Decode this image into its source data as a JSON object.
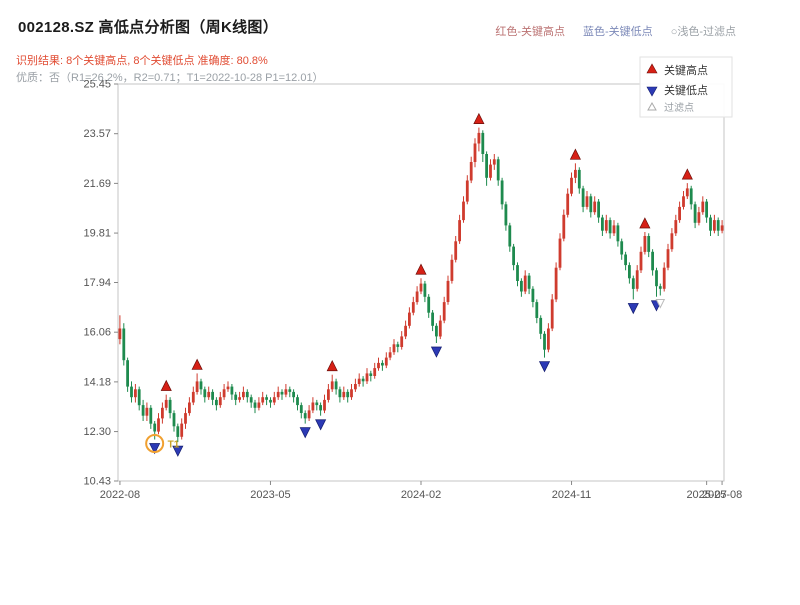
{
  "header": {
    "title": "002128.SZ 高低点分析图（周K线图）",
    "legend_top": [
      {
        "label": "红色-关键高点",
        "color": "#bb7272"
      },
      {
        "label": "蓝色-关键低点",
        "color": "#7c89b8"
      },
      {
        "label": "○浅色-过滤点",
        "color": "#9aa0a6"
      }
    ],
    "result_line": "识别结果: 8个关键高点, 8个关键低点   准确度: 80.8%",
    "quality_line": "优质：否（R1=26.2%，R2=0.71；T1=2022-10-28 P1=12.01）"
  },
  "chart_data": {
    "type": "candlestick",
    "title": "002128.SZ 高低点分析图（周K线图）",
    "period": "weekly",
    "xlabel": "",
    "ylabel": "",
    "ylim": [
      10.43,
      25.45
    ],
    "y_ticks": [
      10.43,
      12.3,
      14.18,
      16.06,
      17.94,
      19.81,
      21.69,
      23.57,
      25.45
    ],
    "x_ticks": [
      {
        "week": 0,
        "label": "2022-08"
      },
      {
        "week": 39,
        "label": "2023-05"
      },
      {
        "week": 78,
        "label": "2024-02"
      },
      {
        "week": 117,
        "label": "2024-11"
      },
      {
        "week": 152,
        "label": "2025-07"
      },
      {
        "week": 156,
        "label": "2025-08"
      }
    ],
    "legend_box": [
      {
        "marker": "key-high",
        "label": "关键高点"
      },
      {
        "marker": "key-low",
        "label": "关键低点"
      },
      {
        "marker": "filtered",
        "label": "过滤点"
      }
    ],
    "colors": {
      "up": "#cf3b2e",
      "down": "#1e8a4e",
      "key_high": "#d62016",
      "key_low": "#2c3ab5",
      "filtered": "#bbbbbb",
      "t1_circle": "#f0a030",
      "t1_label": "#c9a227"
    },
    "candles": [
      [
        15.8,
        16.7,
        15.6,
        16.2
      ],
      [
        16.2,
        16.4,
        14.8,
        15.0
      ],
      [
        15.0,
        15.1,
        13.8,
        14.0
      ],
      [
        14.0,
        14.2,
        13.4,
        13.6
      ],
      [
        13.6,
        14.1,
        13.4,
        13.9
      ],
      [
        13.9,
        14.0,
        13.1,
        13.3
      ],
      [
        13.3,
        13.5,
        12.7,
        12.9
      ],
      [
        12.9,
        13.4,
        12.7,
        13.2
      ],
      [
        13.2,
        13.3,
        12.4,
        12.6
      ],
      [
        12.6,
        12.7,
        12.0,
        12.3
      ],
      [
        12.3,
        13.0,
        12.2,
        12.8
      ],
      [
        12.8,
        13.4,
        12.6,
        13.2
      ],
      [
        13.2,
        13.7,
        13.1,
        13.5
      ],
      [
        13.5,
        13.6,
        12.8,
        13.0
      ],
      [
        13.0,
        13.1,
        12.3,
        12.5
      ],
      [
        12.5,
        12.6,
        11.9,
        12.1
      ],
      [
        12.1,
        12.8,
        12.0,
        12.6
      ],
      [
        12.6,
        13.2,
        12.4,
        13.0
      ],
      [
        13.0,
        13.6,
        12.9,
        13.4
      ],
      [
        13.4,
        14.0,
        13.3,
        13.8
      ],
      [
        13.8,
        14.5,
        13.7,
        14.2
      ],
      [
        14.2,
        14.3,
        13.7,
        13.9
      ],
      [
        13.9,
        14.0,
        13.4,
        13.6
      ],
      [
        13.6,
        14.0,
        13.5,
        13.8
      ],
      [
        13.8,
        13.9,
        13.3,
        13.5
      ],
      [
        13.5,
        13.6,
        13.1,
        13.3
      ],
      [
        13.3,
        13.8,
        13.2,
        13.6
      ],
      [
        13.6,
        14.1,
        13.5,
        13.9
      ],
      [
        13.9,
        14.2,
        13.8,
        14.0
      ],
      [
        14.0,
        14.1,
        13.5,
        13.7
      ],
      [
        13.7,
        13.8,
        13.3,
        13.5
      ],
      [
        13.5,
        13.8,
        13.4,
        13.6
      ],
      [
        13.6,
        14.0,
        13.5,
        13.8
      ],
      [
        13.8,
        13.9,
        13.4,
        13.6
      ],
      [
        13.6,
        13.7,
        13.2,
        13.4
      ],
      [
        13.4,
        13.5,
        13.0,
        13.2
      ],
      [
        13.2,
        13.6,
        13.1,
        13.4
      ],
      [
        13.4,
        13.8,
        13.3,
        13.6
      ],
      [
        13.6,
        13.7,
        13.3,
        13.5
      ],
      [
        13.5,
        13.6,
        13.2,
        13.4
      ],
      [
        13.4,
        13.8,
        13.3,
        13.6
      ],
      [
        13.6,
        14.0,
        13.5,
        13.8
      ],
      [
        13.8,
        13.9,
        13.5,
        13.7
      ],
      [
        13.7,
        14.1,
        13.6,
        13.9
      ],
      [
        13.9,
        14.0,
        13.6,
        13.8
      ],
      [
        13.8,
        13.9,
        13.4,
        13.6
      ],
      [
        13.6,
        13.7,
        13.1,
        13.3
      ],
      [
        13.3,
        13.4,
        12.8,
        13.0
      ],
      [
        13.0,
        13.1,
        12.6,
        12.8
      ],
      [
        12.8,
        13.3,
        12.7,
        13.1
      ],
      [
        13.1,
        13.6,
        13.0,
        13.4
      ],
      [
        13.4,
        13.5,
        13.1,
        13.3
      ],
      [
        13.3,
        13.4,
        12.9,
        13.1
      ],
      [
        13.1,
        13.7,
        13.0,
        13.5
      ],
      [
        13.5,
        14.1,
        13.4,
        13.9
      ],
      [
        13.9,
        14.45,
        13.8,
        14.2
      ],
      [
        14.2,
        14.3,
        13.7,
        13.9
      ],
      [
        13.9,
        14.0,
        13.4,
        13.6
      ],
      [
        13.6,
        14.0,
        13.5,
        13.8
      ],
      [
        13.8,
        13.9,
        13.4,
        13.6
      ],
      [
        13.6,
        14.1,
        13.5,
        13.9
      ],
      [
        13.9,
        14.3,
        13.8,
        14.1
      ],
      [
        14.1,
        14.5,
        14.0,
        14.3
      ],
      [
        14.3,
        14.4,
        14.0,
        14.2
      ],
      [
        14.2,
        14.7,
        14.1,
        14.5
      ],
      [
        14.5,
        14.6,
        14.2,
        14.4
      ],
      [
        14.4,
        14.9,
        14.3,
        14.7
      ],
      [
        14.7,
        15.1,
        14.6,
        14.9
      ],
      [
        14.9,
        15.0,
        14.6,
        14.8
      ],
      [
        14.8,
        15.3,
        14.7,
        15.1
      ],
      [
        15.1,
        15.5,
        15.0,
        15.3
      ],
      [
        15.3,
        15.8,
        15.2,
        15.6
      ],
      [
        15.6,
        15.7,
        15.3,
        15.5
      ],
      [
        15.5,
        16.1,
        15.4,
        15.9
      ],
      [
        15.9,
        16.5,
        15.8,
        16.3
      ],
      [
        16.3,
        17.0,
        16.2,
        16.8
      ],
      [
        16.8,
        17.4,
        16.7,
        17.2
      ],
      [
        17.2,
        17.8,
        17.1,
        17.6
      ],
      [
        17.6,
        18.1,
        17.5,
        17.9
      ],
      [
        17.9,
        18.0,
        17.2,
        17.4
      ],
      [
        17.4,
        17.5,
        16.6,
        16.8
      ],
      [
        16.8,
        16.9,
        16.1,
        16.3
      ],
      [
        16.3,
        16.4,
        15.65,
        15.9
      ],
      [
        15.9,
        16.7,
        15.8,
        16.5
      ],
      [
        16.5,
        17.4,
        16.4,
        17.2
      ],
      [
        17.2,
        18.2,
        17.1,
        18.0
      ],
      [
        18.0,
        19.0,
        17.9,
        18.8
      ],
      [
        18.8,
        19.7,
        18.7,
        19.5
      ],
      [
        19.5,
        20.5,
        19.4,
        20.3
      ],
      [
        20.3,
        21.2,
        20.2,
        21.0
      ],
      [
        21.0,
        22.0,
        20.9,
        21.8
      ],
      [
        21.8,
        22.7,
        21.7,
        22.5
      ],
      [
        22.5,
        23.4,
        22.3,
        23.2
      ],
      [
        23.2,
        23.8,
        22.9,
        23.6
      ],
      [
        23.6,
        23.7,
        22.5,
        22.8
      ],
      [
        22.8,
        22.9,
        21.6,
        21.9
      ],
      [
        21.9,
        22.6,
        21.8,
        22.4
      ],
      [
        22.4,
        22.8,
        22.2,
        22.6
      ],
      [
        22.6,
        22.7,
        21.6,
        21.8
      ],
      [
        21.8,
        21.9,
        20.7,
        20.9
      ],
      [
        20.9,
        21.0,
        19.9,
        20.1
      ],
      [
        20.1,
        20.2,
        19.1,
        19.3
      ],
      [
        19.3,
        19.4,
        18.4,
        18.6
      ],
      [
        18.6,
        18.7,
        17.8,
        18.0
      ],
      [
        18.0,
        18.1,
        17.4,
        17.6
      ],
      [
        17.6,
        18.4,
        17.5,
        18.2
      ],
      [
        18.2,
        18.3,
        17.5,
        17.7
      ],
      [
        17.7,
        17.8,
        17.0,
        17.2
      ],
      [
        17.2,
        17.3,
        16.4,
        16.6
      ],
      [
        16.6,
        16.7,
        15.8,
        16.0
      ],
      [
        16.0,
        16.1,
        15.1,
        15.4
      ],
      [
        15.4,
        16.4,
        15.3,
        16.2
      ],
      [
        16.2,
        17.5,
        16.1,
        17.3
      ],
      [
        17.3,
        18.7,
        17.2,
        18.5
      ],
      [
        18.5,
        19.8,
        18.4,
        19.6
      ],
      [
        19.6,
        20.7,
        19.5,
        20.5
      ],
      [
        20.5,
        21.5,
        20.4,
        21.3
      ],
      [
        21.3,
        22.1,
        21.2,
        21.9
      ],
      [
        21.9,
        22.45,
        21.7,
        22.2
      ],
      [
        22.2,
        22.3,
        21.3,
        21.5
      ],
      [
        21.5,
        21.6,
        20.6,
        20.8
      ],
      [
        20.8,
        21.4,
        20.7,
        21.2
      ],
      [
        21.2,
        21.3,
        20.4,
        20.6
      ],
      [
        20.6,
        21.2,
        20.5,
        21.0
      ],
      [
        21.0,
        21.1,
        20.2,
        20.4
      ],
      [
        20.4,
        20.5,
        19.7,
        19.9
      ],
      [
        19.9,
        20.5,
        19.8,
        20.3
      ],
      [
        20.3,
        20.4,
        19.6,
        19.8
      ],
      [
        19.8,
        20.3,
        19.7,
        20.1
      ],
      [
        20.1,
        20.2,
        19.3,
        19.5
      ],
      [
        19.5,
        19.6,
        18.8,
        19.0
      ],
      [
        19.0,
        19.1,
        18.4,
        18.6
      ],
      [
        18.6,
        18.7,
        17.9,
        18.1
      ],
      [
        18.1,
        18.2,
        17.3,
        17.7
      ],
      [
        17.7,
        18.6,
        17.6,
        18.4
      ],
      [
        18.4,
        19.3,
        18.3,
        19.1
      ],
      [
        19.1,
        19.85,
        19.0,
        19.7
      ],
      [
        19.7,
        19.8,
        18.9,
        19.1
      ],
      [
        19.1,
        19.2,
        18.2,
        18.4
      ],
      [
        18.4,
        18.5,
        17.4,
        17.8
      ],
      [
        17.8,
        17.9,
        17.45,
        17.7
      ],
      [
        17.7,
        18.7,
        17.6,
        18.5
      ],
      [
        18.5,
        19.4,
        18.4,
        19.2
      ],
      [
        19.2,
        20.0,
        19.1,
        19.8
      ],
      [
        19.8,
        20.5,
        19.7,
        20.3
      ],
      [
        20.3,
        21.0,
        20.2,
        20.8
      ],
      [
        20.8,
        21.4,
        20.7,
        21.2
      ],
      [
        21.2,
        21.7,
        21.1,
        21.5
      ],
      [
        21.5,
        21.6,
        20.7,
        20.9
      ],
      [
        20.9,
        21.0,
        20.0,
        20.2
      ],
      [
        20.2,
        20.8,
        20.1,
        20.6
      ],
      [
        20.6,
        21.2,
        20.5,
        21.0
      ],
      [
        21.0,
        21.1,
        20.2,
        20.4
      ],
      [
        20.4,
        20.5,
        19.7,
        19.9
      ],
      [
        19.9,
        20.5,
        19.8,
        20.3
      ],
      [
        20.3,
        20.4,
        19.7,
        19.9
      ],
      [
        19.9,
        20.3,
        19.8,
        20.1
      ]
    ],
    "key_highs": [
      {
        "week": 12,
        "price": 13.7
      },
      {
        "week": 20,
        "price": 14.5
      },
      {
        "week": 55,
        "price": 14.45
      },
      {
        "week": 78,
        "price": 18.1
      },
      {
        "week": 93,
        "price": 23.8
      },
      {
        "week": 118,
        "price": 22.45
      },
      {
        "week": 136,
        "price": 19.85
      },
      {
        "week": 147,
        "price": 21.7
      }
    ],
    "key_lows": [
      {
        "week": 9,
        "price": 12.0
      },
      {
        "week": 15,
        "price": 11.9
      },
      {
        "week": 48,
        "price": 12.6
      },
      {
        "week": 52,
        "price": 12.9
      },
      {
        "week": 82,
        "price": 15.65
      },
      {
        "week": 110,
        "price": 15.1
      },
      {
        "week": 133,
        "price": 17.3
      },
      {
        "week": 139,
        "price": 17.4
      }
    ],
    "filtered_points": [
      {
        "week": 140,
        "price": 17.45
      }
    ],
    "t1_annotation": {
      "week": 9,
      "price": 12.0,
      "label": "T1"
    }
  }
}
